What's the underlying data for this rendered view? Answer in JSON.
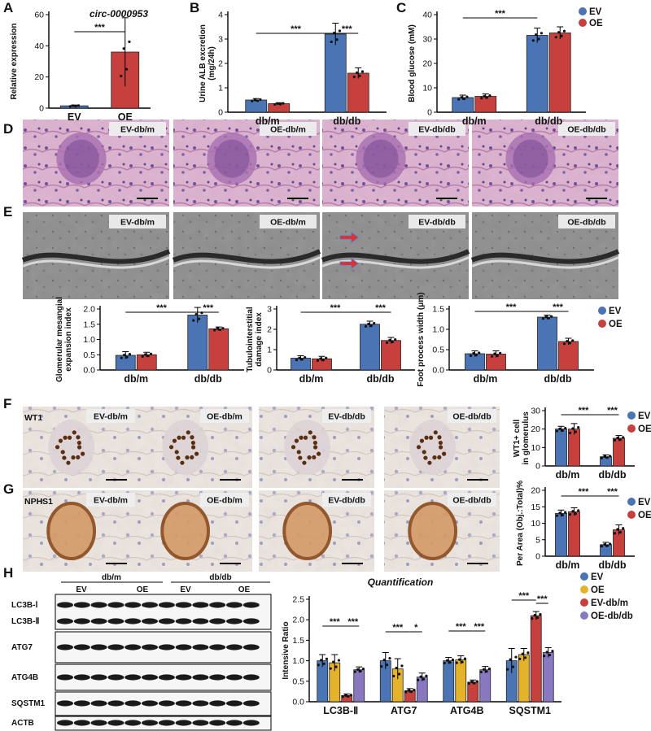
{
  "panel_letters": [
    "A",
    "B",
    "C",
    "D",
    "E",
    "F",
    "G",
    "H"
  ],
  "colors": {
    "ev": "#4a74b4",
    "oe": "#c6403e",
    "yellow": "#e5b22b",
    "purple": "#8878c0",
    "he_bg": "#d8aecb",
    "em_bg": "#9a9a9a",
    "ihc_bg": "#e9e1dc"
  },
  "panel_d": {
    "labels": [
      "EV-db/m",
      "OE-db/m",
      "EV-db/db",
      "OE-db/db"
    ]
  },
  "panel_e": {
    "labels": [
      "EV-db/m",
      "OE-db/m",
      "EV-db/db",
      "OE-db/db"
    ]
  },
  "panel_f": {
    "marker": "WT1",
    "labels": [
      "EV-db/m",
      "OE-db/m",
      "EV-db/db",
      "OE-db/db"
    ]
  },
  "panel_g": {
    "marker": "NPHS1",
    "labels": [
      "EV-db/m",
      "OE-db/m",
      "EV-db/db",
      "OE-db/db"
    ]
  },
  "panel_h": {
    "group_labels": [
      "db/m",
      "db/db"
    ],
    "lane_labels": [
      "EV",
      "OE",
      "EV",
      "OE"
    ],
    "band_labels": [
      "LC3B-Ⅰ",
      "LC3B-Ⅱ",
      "ATG7",
      "ATG4B",
      "SQSTM1",
      "ACTB"
    ]
  },
  "chart_data": [
    {
      "id": "A",
      "type": "bar",
      "title": "circ-0000953",
      "ylabel": "Relative expression",
      "ylim": [
        0,
        60
      ],
      "yticks": [
        0,
        20,
        40,
        60
      ],
      "categories": [
        "EV",
        "OE"
      ],
      "values": [
        1.5,
        36
      ],
      "errors": [
        0.5,
        22
      ],
      "colors": [
        "#4a74b4",
        "#c6403e"
      ],
      "annotations": [
        "***"
      ]
    },
    {
      "id": "B",
      "type": "bar",
      "ylabel": "Urine ALB excretion (mg/24h)",
      "ylim": [
        0,
        4
      ],
      "yticks": [
        0,
        1,
        2,
        3,
        4
      ],
      "categories": [
        "db/m",
        "db/db"
      ],
      "series": [
        {
          "values": [
            0.5,
            3.2
          ],
          "errors": [
            0.06,
            0.45
          ]
        },
        {
          "values": [
            0.35,
            1.6
          ],
          "errors": [
            0.04,
            0.22
          ]
        }
      ],
      "annotations": [
        "***",
        "***"
      ]
    },
    {
      "id": "C",
      "type": "bar",
      "ylabel": "Blood glucose (mM)",
      "ylim": [
        0,
        40
      ],
      "yticks": [
        0,
        10,
        20,
        30,
        40
      ],
      "categories": [
        "db/m",
        "db/db"
      ],
      "series": [
        {
          "name": "EV",
          "values": [
            6,
            31.5
          ],
          "errors": [
            1,
            3
          ]
        },
        {
          "name": "OE",
          "values": [
            6.5,
            32.5
          ],
          "errors": [
            1,
            2.5
          ]
        }
      ],
      "annotations": [
        "***"
      ]
    },
    {
      "id": "E1",
      "type": "bar",
      "ylabel": "Glomerular mesangial expansion index",
      "ylim": [
        0,
        2.0
      ],
      "yticks": [
        0.0,
        0.5,
        1.0,
        1.5,
        2.0
      ],
      "categories": [
        "db/m",
        "db/db"
      ],
      "series": [
        {
          "values": [
            0.48,
            1.8
          ],
          "errors": [
            0.12,
            0.25
          ]
        },
        {
          "values": [
            0.5,
            1.35
          ],
          "errors": [
            0.08,
            0.06
          ]
        }
      ],
      "annotations": [
        "***",
        "***"
      ]
    },
    {
      "id": "E2",
      "type": "bar",
      "ylabel": "Tubulointerstitial damage index",
      "ylim": [
        0,
        3
      ],
      "yticks": [
        0,
        1,
        2,
        3
      ],
      "categories": [
        "db/m",
        "db/db"
      ],
      "series": [
        {
          "values": [
            0.58,
            2.25
          ],
          "errors": [
            0.12,
            0.15
          ]
        },
        {
          "values": [
            0.55,
            1.45
          ],
          "errors": [
            0.12,
            0.15
          ]
        }
      ],
      "annotations": [
        "***",
        "***"
      ]
    },
    {
      "id": "E3",
      "type": "bar",
      "ylabel": "Foot process width (μm)",
      "ylim": [
        0,
        1.5
      ],
      "yticks": [
        0.0,
        0.5,
        1.0,
        1.5
      ],
      "categories": [
        "db/m",
        "db/db"
      ],
      "series": [
        {
          "name": "EV",
          "values": [
            0.4,
            1.3
          ],
          "errors": [
            0.07,
            0.05
          ]
        },
        {
          "name": "OE",
          "values": [
            0.39,
            0.7
          ],
          "errors": [
            0.08,
            0.08
          ]
        }
      ],
      "annotations": [
        "***",
        "***"
      ]
    },
    {
      "id": "F",
      "type": "bar",
      "ylabel": "WT1+ cell in glomerulus",
      "ylim": [
        0,
        30
      ],
      "yticks": [
        0,
        10,
        20,
        30
      ],
      "categories": [
        "db/m",
        "db/db"
      ],
      "series": [
        {
          "name": "EV",
          "values": [
            20,
            5
          ],
          "errors": [
            1.5,
            1
          ]
        },
        {
          "name": "OE",
          "values": [
            20,
            15
          ],
          "errors": [
            3,
            1.5
          ]
        }
      ],
      "annotations": [
        "***",
        "***"
      ]
    },
    {
      "id": "G",
      "type": "bar",
      "ylabel": "Per Area (Obj.:Total)%",
      "ylim": [
        0,
        20
      ],
      "yticks": [
        0,
        5,
        10,
        15,
        20
      ],
      "categories": [
        "db/m",
        "db/db"
      ],
      "series": [
        {
          "name": "EV",
          "values": [
            13,
            3.5
          ],
          "errors": [
            1,
            0.7
          ]
        },
        {
          "name": "OE",
          "values": [
            13.5,
            8
          ],
          "errors": [
            1.2,
            1.5
          ]
        }
      ],
      "annotations": [
        "***",
        "***"
      ]
    },
    {
      "id": "H",
      "type": "bar",
      "title": "Quantification",
      "ylabel": "Intensive Ratio",
      "ylim": [
        0,
        2.5
      ],
      "yticks": [
        0.0,
        0.5,
        1.0,
        1.5,
        2.0,
        2.5
      ],
      "categories": [
        "LC3B-Ⅱ",
        "ATG7",
        "ATG4B",
        "SQSTM1"
      ],
      "series": [
        {
          "name": "EV",
          "values": [
            1.0,
            1.0,
            1.0,
            1.0
          ],
          "errors": [
            0.15,
            0.2,
            0.08,
            0.3
          ]
        },
        {
          "name": "OE",
          "values": [
            0.95,
            0.8,
            1.02,
            1.15
          ],
          "errors": [
            0.2,
            0.25,
            0.1,
            0.15
          ]
        },
        {
          "name": "EV-db/m",
          "values": [
            0.15,
            0.27,
            0.48,
            2.1
          ],
          "errors": [
            0.04,
            0.05,
            0.05,
            0.1
          ]
        },
        {
          "name": "OE-db/db",
          "values": [
            0.78,
            0.6,
            0.78,
            1.2
          ],
          "errors": [
            0.07,
            0.1,
            0.08,
            0.12
          ]
        }
      ],
      "annotations": [
        "***",
        "***",
        "***",
        "*",
        "***",
        "***",
        "***",
        "***"
      ]
    }
  ]
}
